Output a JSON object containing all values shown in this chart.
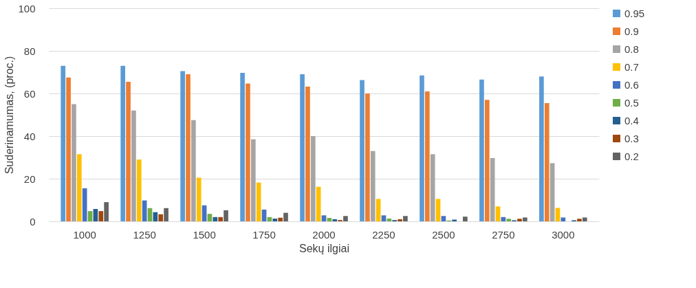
{
  "chart_data": {
    "type": "bar",
    "xlabel": "Sekų ilgiai",
    "ylabel": "Suderinamumas, (proc.)",
    "categories": [
      "1000",
      "1250",
      "1500",
      "1750",
      "2000",
      "2250",
      "2500",
      "2750",
      "3000"
    ],
    "series": [
      {
        "name": "0.95",
        "color": "#5b9bd5",
        "values": [
          73,
          73,
          70.5,
          69.7,
          69,
          66.3,
          68.5,
          66.5,
          68
        ]
      },
      {
        "name": "0.9",
        "color": "#ed7d31",
        "values": [
          67.5,
          65.5,
          69,
          64.7,
          63.2,
          60,
          61,
          57,
          55.5
        ]
      },
      {
        "name": "0.8",
        "color": "#a5a5a5",
        "values": [
          55,
          52,
          47.5,
          38.5,
          40,
          33,
          31.5,
          29.7,
          27.3
        ]
      },
      {
        "name": "0.7",
        "color": "#ffc000",
        "values": [
          31.5,
          29,
          20.5,
          18.2,
          16.2,
          10.5,
          10.5,
          7,
          6.3
        ]
      },
      {
        "name": "0.6",
        "color": "#4472c4",
        "values": [
          15.5,
          9.8,
          7.5,
          5.5,
          2.8,
          2.8,
          2.5,
          2,
          1.8
        ]
      },
      {
        "name": "0.5",
        "color": "#70ad47",
        "values": [
          4.8,
          6.2,
          3.5,
          2,
          1.6,
          1.3,
          0.4,
          1.2,
          null
        ]
      },
      {
        "name": "0.4",
        "color": "#255e91",
        "values": [
          5.8,
          4.3,
          2,
          1.3,
          1,
          0.6,
          0.8,
          0.5,
          0.5
        ]
      },
      {
        "name": "0.3",
        "color": "#9e480e",
        "values": [
          4.8,
          3.3,
          2,
          1.7,
          0.6,
          1,
          null,
          1.2,
          1.2
        ]
      },
      {
        "name": "0.2",
        "color": "#636363",
        "values": [
          9,
          6.2,
          5.2,
          4,
          2.5,
          2.5,
          2.2,
          1.8,
          1.8
        ]
      }
    ],
    "ylim": [
      0,
      100
    ],
    "yticks": [
      0,
      20,
      40,
      60,
      80,
      100
    ],
    "grid": "y",
    "legend": "right"
  }
}
